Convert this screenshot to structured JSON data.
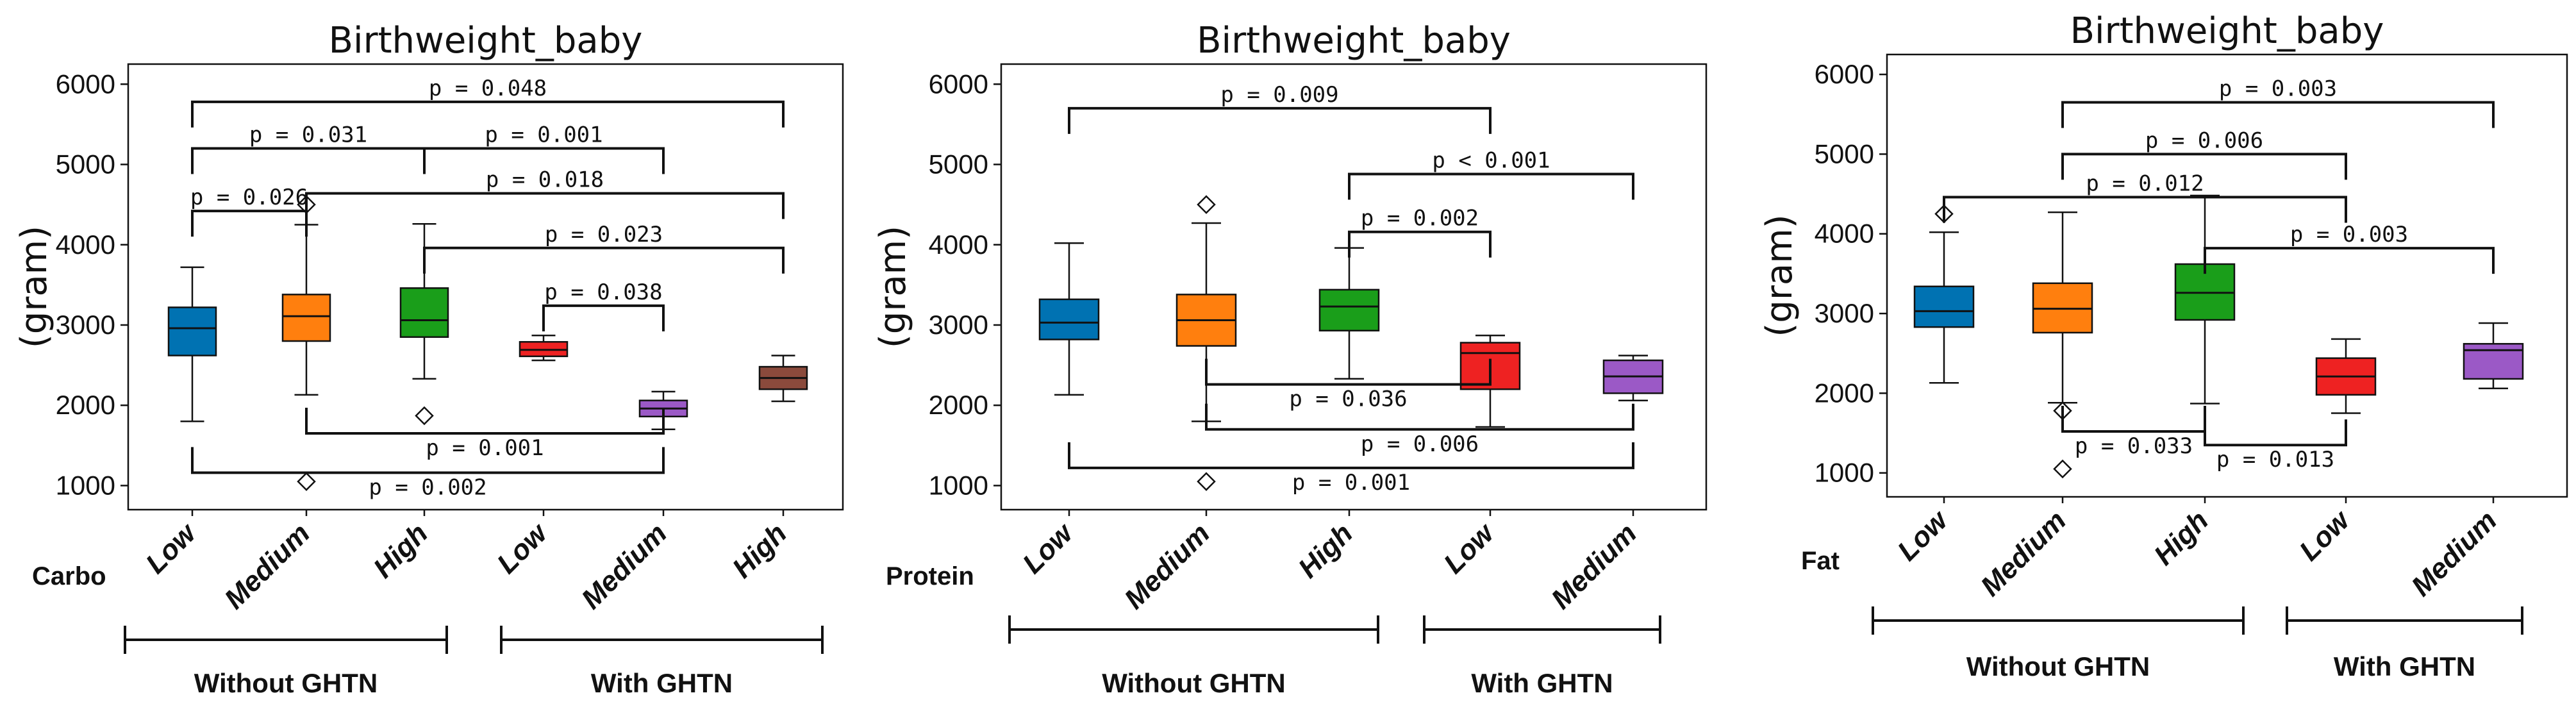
{
  "chart_data": [
    {
      "type": "box",
      "title": "Birthweight_baby",
      "ylabel": "(gram)",
      "ylim": [
        700,
        6250
      ],
      "yticks": [
        1000,
        2000,
        3000,
        4000,
        5000,
        6000
      ],
      "factor_label": "Carbo",
      "categories": [
        "Low",
        "Medium",
        "High",
        "Low",
        "Medium",
        "High"
      ],
      "groups": [
        {
          "label": "Without GHTN",
          "from": 0,
          "to": 2
        },
        {
          "label": "With GHTN",
          "from": 3,
          "to": 5
        }
      ],
      "boxes": [
        {
          "color": "#0072B2",
          "whislo": 1800,
          "q1": 2620,
          "med": 2960,
          "q3": 3220,
          "whishi": 3720,
          "fliers": []
        },
        {
          "color": "#FF7F0E",
          "whislo": 2130,
          "q1": 2800,
          "med": 3110,
          "q3": 3380,
          "whishi": 4250,
          "fliers": [
            1050,
            4500
          ]
        },
        {
          "color": "#1A9E1A",
          "whislo": 2330,
          "q1": 2850,
          "med": 3060,
          "q3": 3460,
          "whishi": 4260,
          "fliers": [
            1870
          ]
        },
        {
          "color": "#EE2222",
          "whislo": 2560,
          "q1": 2610,
          "med": 2690,
          "q3": 2790,
          "whishi": 2870,
          "fliers": []
        },
        {
          "color": "#9B59C6",
          "whislo": 1700,
          "q1": 1860,
          "med": 1960,
          "q3": 2060,
          "whishi": 2170,
          "fliers": []
        },
        {
          "color": "#8B4A3C",
          "whislo": 2050,
          "q1": 2200,
          "med": 2340,
          "q3": 2480,
          "whishi": 2620,
          "fliers": []
        }
      ],
      "comparisons": [
        {
          "from": 0,
          "to": 5,
          "y": 5780,
          "dir": "down",
          "label": "p = 0.048"
        },
        {
          "from": 0,
          "to": 2,
          "y": 5200,
          "dir": "down",
          "label": "p = 0.031"
        },
        {
          "from": 2,
          "to": 4,
          "y": 5200,
          "dir": "down",
          "label": "p = 0.001"
        },
        {
          "from": 1,
          "to": 5,
          "y": 4640,
          "dir": "down",
          "label": "p = 0.018"
        },
        {
          "from": 0,
          "to": 1,
          "y": 4420,
          "dir": "down",
          "label": "p = 0.026"
        },
        {
          "from": 2,
          "to": 5,
          "y": 3960,
          "dir": "down",
          "label": "p = 0.023"
        },
        {
          "from": 3,
          "to": 4,
          "y": 3240,
          "dir": "down",
          "label": "p = 0.038"
        },
        {
          "from": 1,
          "to": 4,
          "y": 1650,
          "dir": "up",
          "label": "p = 0.001"
        },
        {
          "from": 0,
          "to": 4,
          "y": 1160,
          "dir": "up",
          "label": "p = 0.002"
        }
      ]
    },
    {
      "type": "box",
      "title": "Birthweight_baby",
      "ylabel": "(gram)",
      "ylim": [
        700,
        6250
      ],
      "yticks": [
        1000,
        2000,
        3000,
        4000,
        5000,
        6000
      ],
      "factor_label": "Protein",
      "categories": [
        "Low",
        "Medium",
        "High",
        "Low",
        "Medium"
      ],
      "groups": [
        {
          "label": "Without GHTN",
          "from": 0,
          "to": 2
        },
        {
          "label": "With GHTN",
          "from": 3,
          "to": 4
        }
      ],
      "boxes": [
        {
          "color": "#0072B2",
          "whislo": 2130,
          "q1": 2820,
          "med": 3030,
          "q3": 3320,
          "whishi": 4020,
          "fliers": []
        },
        {
          "color": "#FF7F0E",
          "whislo": 1800,
          "q1": 2740,
          "med": 3060,
          "q3": 3380,
          "whishi": 4270,
          "fliers": [
            1050,
            4500
          ]
        },
        {
          "color": "#1A9E1A",
          "whislo": 2330,
          "q1": 2930,
          "med": 3230,
          "q3": 3440,
          "whishi": 3960,
          "fliers": []
        },
        {
          "color": "#EE2222",
          "whislo": 1730,
          "q1": 2200,
          "med": 2650,
          "q3": 2780,
          "whishi": 2870,
          "fliers": []
        },
        {
          "color": "#9B59C6",
          "whislo": 2060,
          "q1": 2150,
          "med": 2360,
          "q3": 2560,
          "whishi": 2620,
          "fliers": []
        }
      ],
      "comparisons": [
        {
          "from": 0,
          "to": 3,
          "y": 5700,
          "dir": "down",
          "label": "p = 0.009"
        },
        {
          "from": 2,
          "to": 4,
          "y": 4880,
          "dir": "down",
          "label": "p < 0.001"
        },
        {
          "from": 2,
          "to": 3,
          "y": 4160,
          "dir": "down",
          "label": "p = 0.002"
        },
        {
          "from": 1,
          "to": 3,
          "y": 2260,
          "dir": "up",
          "label": "p = 0.036"
        },
        {
          "from": 1,
          "to": 4,
          "y": 1700,
          "dir": "up",
          "label": "p = 0.006"
        },
        {
          "from": 0,
          "to": 4,
          "y": 1220,
          "dir": "up",
          "label": "p = 0.001"
        }
      ]
    },
    {
      "type": "box",
      "title": "Birthweight_baby",
      "ylabel": "(gram)",
      "ylim": [
        700,
        6250
      ],
      "yticks": [
        1000,
        2000,
        3000,
        4000,
        5000,
        6000
      ],
      "factor_label": "Fat",
      "categories": [
        "Low",
        "Medium",
        "High",
        "Low",
        "Medium"
      ],
      "groups": [
        {
          "label": "Without GHTN",
          "from": 0,
          "to": 2
        },
        {
          "label": "With GHTN",
          "from": 3,
          "to": 4
        }
      ],
      "boxes": [
        {
          "color": "#0072B2",
          "whislo": 2130,
          "q1": 2830,
          "med": 3030,
          "q3": 3340,
          "whishi": 4020,
          "fliers": [
            4250
          ]
        },
        {
          "color": "#FF7F0E",
          "whislo": 1880,
          "q1": 2760,
          "med": 3060,
          "q3": 3380,
          "whishi": 4270,
          "fliers": [
            1050,
            1780
          ]
        },
        {
          "color": "#1A9E1A",
          "whislo": 1870,
          "q1": 2920,
          "med": 3260,
          "q3": 3620,
          "whishi": 4480,
          "fliers": []
        },
        {
          "color": "#EE2222",
          "whislo": 1750,
          "q1": 1980,
          "med": 2210,
          "q3": 2440,
          "whishi": 2680,
          "fliers": []
        },
        {
          "color": "#9B59C6",
          "whislo": 2060,
          "q1": 2180,
          "med": 2540,
          "q3": 2620,
          "whishi": 2880,
          "fliers": []
        }
      ],
      "comparisons": [
        {
          "from": 1,
          "to": 4,
          "y": 5650,
          "dir": "down",
          "label": "p = 0.003"
        },
        {
          "from": 1,
          "to": 3,
          "y": 5000,
          "dir": "down",
          "label": "p = 0.006"
        },
        {
          "from": 0,
          "to": 3,
          "y": 4460,
          "dir": "down",
          "label": "p = 0.012"
        },
        {
          "from": 2,
          "to": 4,
          "y": 3820,
          "dir": "down",
          "label": "p = 0.003"
        },
        {
          "from": 1,
          "to": 2,
          "y": 1520,
          "dir": "up",
          "label": "p = 0.033"
        },
        {
          "from": 2,
          "to": 3,
          "y": 1350,
          "dir": "up",
          "label": "p = 0.013"
        }
      ]
    }
  ]
}
